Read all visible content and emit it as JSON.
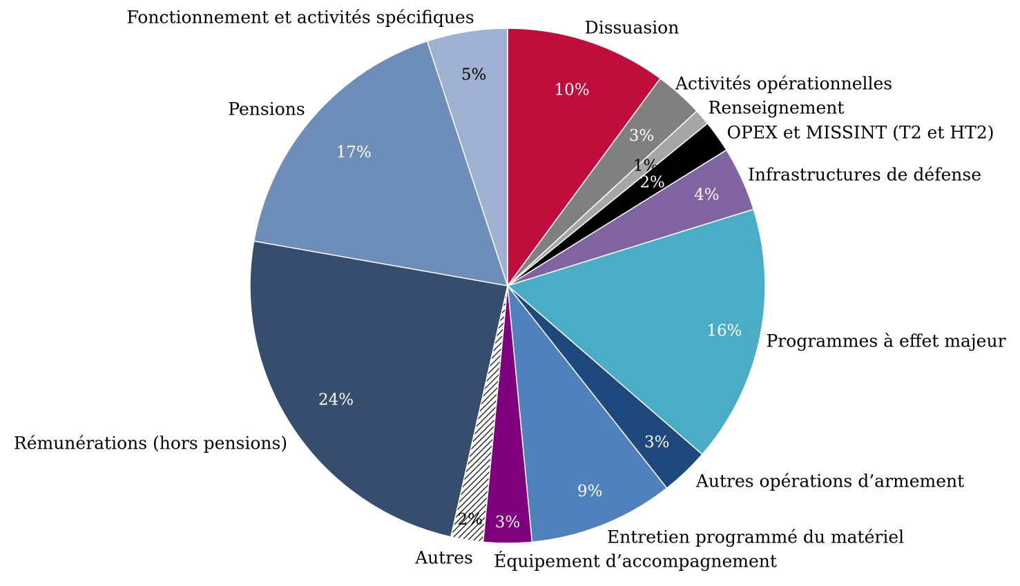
{
  "chart_data": {
    "type": "pie",
    "start_angle_deg": 0,
    "direction": "clockwise",
    "slices": [
      {
        "label": "Dissuasion",
        "value": 10,
        "value_label": "10%",
        "color": "#c00d3c",
        "text_color": "#ffffff"
      },
      {
        "label": "Activités opérationnelles",
        "value": 3,
        "value_label": "3%",
        "color": "#808080",
        "text_color": "#ffffff"
      },
      {
        "label": "Renseignement",
        "value": 1,
        "value_label": "1%",
        "color": "#a6a6a6",
        "text_color": "#000000"
      },
      {
        "label": "OPEX et MISSINT (T2 et HT2)",
        "value": 2,
        "value_label": "2%",
        "color": "#000000",
        "text_color": "#ffffff"
      },
      {
        "label": "Infrastructures de défense",
        "value": 4,
        "value_label": "4%",
        "color": "#8064a2",
        "text_color": "#ffffff"
      },
      {
        "label": "Programmes à effet majeur",
        "value": 16,
        "value_label": "16%",
        "color": "#4bacc6",
        "text_color": "#ffffff"
      },
      {
        "label": "Autres opérations d’armement",
        "value": 3,
        "value_label": "3%",
        "color": "#1f497d",
        "text_color": "#ffffff"
      },
      {
        "label": "Entretien programmé du matériel",
        "value": 9,
        "value_label": "9%",
        "color": "#4f81bd",
        "text_color": "#ffffff"
      },
      {
        "label": "Équipement d’accompagnement",
        "value": 3,
        "value_label": "3%",
        "color": "#7f007f",
        "text_color": "#ffffff"
      },
      {
        "label": "Autres",
        "value": 2,
        "value_label": "2%",
        "color": "hatched",
        "text_color": "#000000"
      },
      {
        "label": "Rémunérations (hors pensions)",
        "value": 24,
        "value_label": "24%",
        "color": "#364d6e",
        "text_color": "#ffffff"
      },
      {
        "label": "Pensions",
        "value": 17,
        "value_label": "17%",
        "color": "#6f8db9",
        "text_color": "#ffffff"
      },
      {
        "label": "Fonctionnement et activités spécifiques",
        "value": 5,
        "value_label": "5%",
        "color": "#9eb1d0",
        "text_color": "#000000"
      }
    ]
  }
}
